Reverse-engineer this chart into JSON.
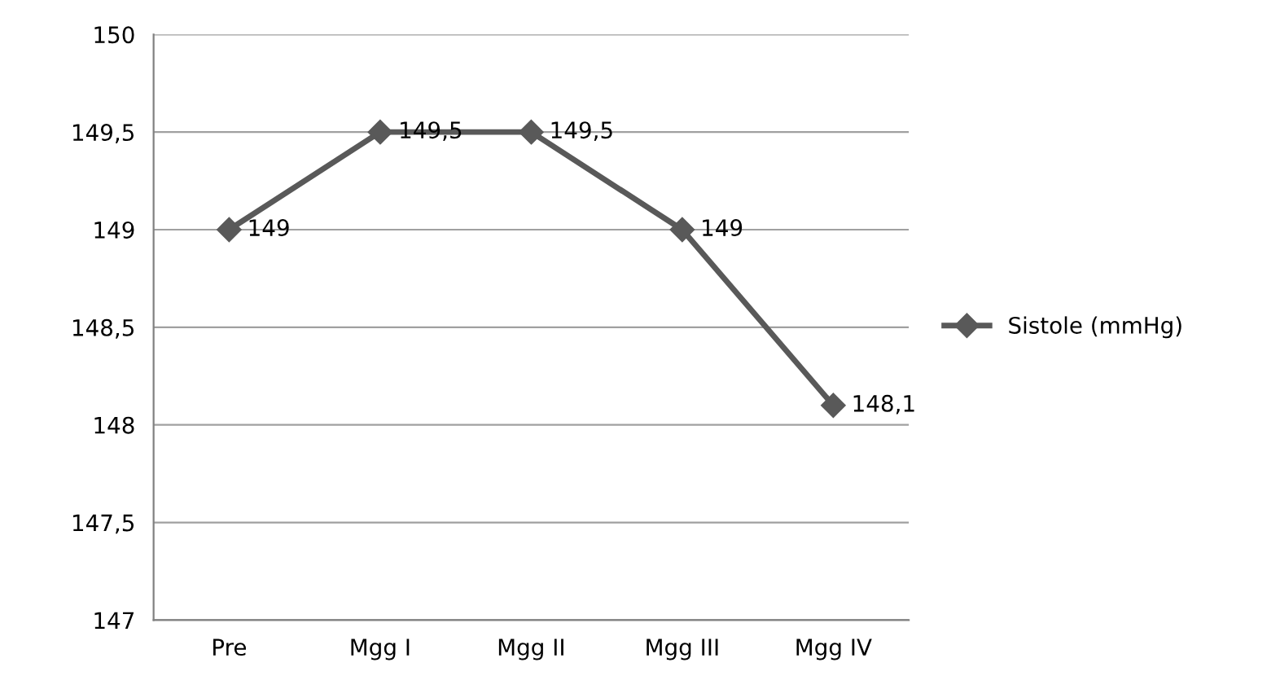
{
  "chart_data": {
    "type": "line",
    "categories": [
      "Pre",
      "Mgg I",
      "Mgg II",
      "Mgg III",
      "Mgg IV"
    ],
    "series": [
      {
        "name": "Sistole (mmHg)",
        "color": "#595959",
        "values": [
          149,
          149.5,
          149.5,
          149,
          148.1
        ],
        "value_labels": [
          "149",
          "149,5",
          "149,5",
          "149",
          "148,1"
        ]
      }
    ],
    "ylim": [
      147,
      150
    ],
    "yticks": [
      147,
      {
        "value": 147.5,
        "label": "147,5"
      },
      148,
      {
        "value": 148.5,
        "label": "148,5"
      },
      149,
      {
        "value": 149.5,
        "label": "149,5"
      },
      150
    ],
    "grid": "y",
    "legend": "right",
    "marker": "diamond",
    "line_style": "solid"
  }
}
